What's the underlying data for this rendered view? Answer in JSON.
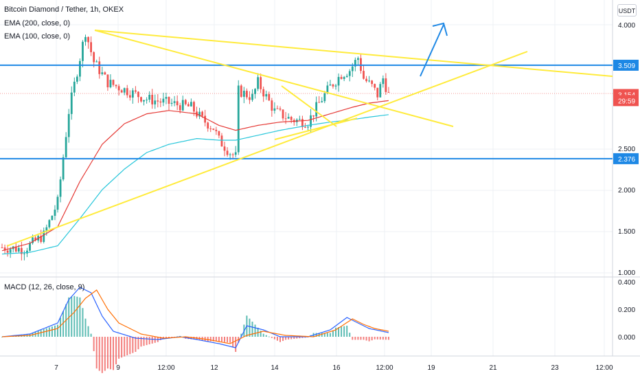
{
  "header": {
    "title": "Bitcoin Diamond / Tether, 1h, OKEX",
    "indicators": [
      "EMA (200, close, 0)",
      "EMA (100, close, 0)"
    ],
    "currency_button": "USDT"
  },
  "macd_panel": {
    "label": "MACD (12, 26, close, 9)"
  },
  "colors": {
    "bull": "#26a69a",
    "bear": "#ef5350",
    "ema200": "#e53935",
    "ema100": "#26c6da",
    "trendline": "#ffeb3b",
    "level": "#1e88e5",
    "macd": "#2962ff",
    "signal": "#ff6d00",
    "price_tag": "#ef5350"
  },
  "chart_data": {
    "type": "candlestick",
    "main_ylim": [
      1.0,
      4.05
    ],
    "main_yticks": [
      "4.000",
      "2.500",
      "2.000",
      "1.500",
      "1.000"
    ],
    "x_ticks": [
      "7",
      "9",
      "12:00",
      "12",
      "14",
      "16",
      "12:00",
      "19",
      "21",
      "23",
      "12:00"
    ],
    "price_tags": [
      {
        "label": "3.509",
        "value": 3.509,
        "kind": "level"
      },
      {
        "label": "3.154",
        "value": 3.154,
        "kind": "last"
      },
      {
        "label": "29:59",
        "value": 3.08,
        "kind": "countdown"
      },
      {
        "label": "2.376",
        "value": 2.376,
        "kind": "level"
      }
    ],
    "horizontal_levels": [
      3.509,
      2.376
    ],
    "macd_ylim": [
      -0.25,
      0.42
    ],
    "macd_yticks": [
      "0.400",
      "0.200",
      "0.000"
    ],
    "price_path": [
      [
        0,
        1.3
      ],
      [
        8,
        1.28
      ],
      [
        15,
        1.45
      ],
      [
        20,
        1.85
      ],
      [
        24,
        2.95
      ],
      [
        28,
        3.6
      ],
      [
        30,
        3.92
      ],
      [
        33,
        3.55
      ],
      [
        38,
        3.3
      ],
      [
        45,
        3.2
      ],
      [
        52,
        3.1
      ],
      [
        60,
        3.05
      ],
      [
        68,
        3.0
      ],
      [
        72,
        2.85
      ],
      [
        76,
        2.75
      ],
      [
        78,
        2.6
      ],
      [
        82,
        2.45
      ],
      [
        84,
        2.4
      ],
      [
        85,
        3.2
      ],
      [
        90,
        3.12
      ],
      [
        92,
        3.3
      ],
      [
        98,
        2.95
      ],
      [
        104,
        2.85
      ],
      [
        110,
        2.82
      ],
      [
        114,
        3.05
      ],
      [
        118,
        3.25
      ],
      [
        122,
        3.4
      ],
      [
        125,
        3.45
      ],
      [
        128,
        3.6
      ],
      [
        130,
        3.35
      ],
      [
        133,
        3.25
      ],
      [
        135,
        3.15
      ],
      [
        137,
        3.35
      ],
      [
        139,
        3.154
      ]
    ],
    "ema200_path": [
      [
        0,
        1.26
      ],
      [
        10,
        1.35
      ],
      [
        20,
        1.55
      ],
      [
        28,
        2.1
      ],
      [
        36,
        2.55
      ],
      [
        44,
        2.8
      ],
      [
        52,
        2.92
      ],
      [
        60,
        2.96
      ],
      [
        70,
        2.92
      ],
      [
        78,
        2.78
      ],
      [
        84,
        2.72
      ],
      [
        92,
        2.78
      ],
      [
        100,
        2.82
      ],
      [
        110,
        2.84
      ],
      [
        118,
        2.92
      ],
      [
        126,
        3.0
      ],
      [
        132,
        3.05
      ],
      [
        139,
        3.08
      ]
    ],
    "ema100_path": [
      [
        0,
        1.22
      ],
      [
        10,
        1.24
      ],
      [
        20,
        1.32
      ],
      [
        28,
        1.65
      ],
      [
        36,
        2.0
      ],
      [
        44,
        2.25
      ],
      [
        52,
        2.45
      ],
      [
        60,
        2.55
      ],
      [
        70,
        2.62
      ],
      [
        78,
        2.6
      ],
      [
        84,
        2.6
      ],
      [
        92,
        2.66
      ],
      [
        100,
        2.72
      ],
      [
        110,
        2.78
      ],
      [
        118,
        2.82
      ],
      [
        126,
        2.85
      ],
      [
        132,
        2.88
      ],
      [
        139,
        2.91
      ]
    ],
    "macd_path": [
      [
        0,
        0.0
      ],
      [
        10,
        0.02
      ],
      [
        20,
        0.1
      ],
      [
        24,
        0.27
      ],
      [
        28,
        0.36
      ],
      [
        32,
        0.32
      ],
      [
        36,
        0.15
      ],
      [
        40,
        0.04
      ],
      [
        48,
        -0.01
      ],
      [
        56,
        -0.02
      ],
      [
        64,
        0.0
      ],
      [
        70,
        -0.02
      ],
      [
        78,
        -0.05
      ],
      [
        84,
        -0.08
      ],
      [
        88,
        0.08
      ],
      [
        94,
        0.05
      ],
      [
        100,
        0.0
      ],
      [
        110,
        0.0
      ],
      [
        118,
        0.05
      ],
      [
        124,
        0.14
      ],
      [
        128,
        0.1
      ],
      [
        132,
        0.06
      ],
      [
        139,
        0.03
      ]
    ],
    "signal_path": [
      [
        0,
        0.0
      ],
      [
        10,
        0.01
      ],
      [
        20,
        0.06
      ],
      [
        26,
        0.18
      ],
      [
        30,
        0.28
      ],
      [
        34,
        0.34
      ],
      [
        38,
        0.2
      ],
      [
        42,
        0.1
      ],
      [
        50,
        0.02
      ],
      [
        58,
        -0.01
      ],
      [
        66,
        0.0
      ],
      [
        74,
        -0.02
      ],
      [
        82,
        -0.05
      ],
      [
        88,
        0.01
      ],
      [
        94,
        0.04
      ],
      [
        102,
        0.01
      ],
      [
        112,
        0.0
      ],
      [
        120,
        0.05
      ],
      [
        126,
        0.13
      ],
      [
        130,
        0.09
      ],
      [
        134,
        0.06
      ],
      [
        139,
        0.04
      ]
    ]
  }
}
